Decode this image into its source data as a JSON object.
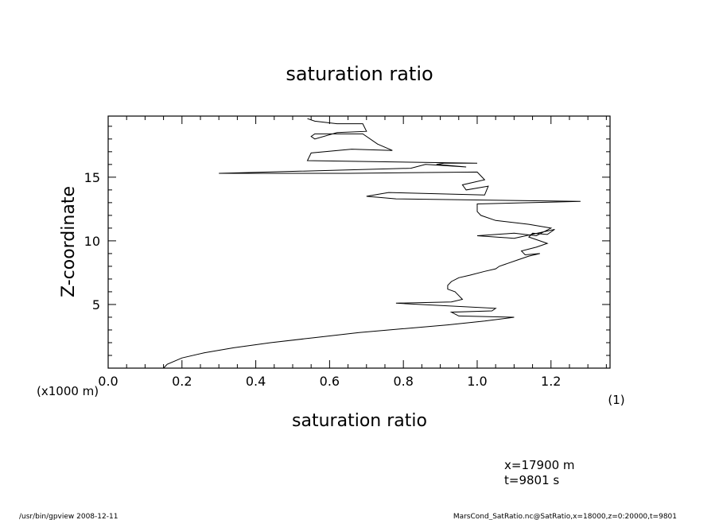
{
  "chart_data": {
    "type": "line",
    "title": "saturation ratio",
    "xlabel": "saturation ratio",
    "ylabel": "Z-coordinate",
    "x_unit": "(1)",
    "y_unit": "(x1000 m)",
    "xlim": [
      0.0,
      1.36
    ],
    "ylim": [
      0,
      19.8
    ],
    "xticks": [
      "0.0",
      "0.2",
      "0.4",
      "0.6",
      "0.8",
      "1.0",
      "1.2"
    ],
    "yticks": [
      "5",
      "10",
      "15"
    ],
    "grid": false,
    "series": [
      {
        "x": [
          0.15,
          0.16,
          0.2,
          0.26,
          0.34,
          0.44,
          0.56,
          0.68,
          0.8,
          0.92,
          1.02,
          1.1,
          0.95,
          0.93,
          1.04,
          1.05,
          0.78,
          0.93,
          0.96,
          0.95,
          0.94,
          0.92,
          0.92,
          0.93,
          0.95,
          0.98,
          1.02,
          1.05,
          1.06,
          1.08,
          1.11,
          1.14,
          1.17,
          1.13,
          1.12,
          1.16,
          1.19,
          1.17,
          1.14,
          1.15,
          1.19,
          1.21,
          1.1,
          1.0,
          1.1,
          1.16,
          1.2,
          1.14,
          1.05,
          1.01,
          1.0,
          1.0,
          1.28,
          0.78,
          0.7,
          0.76,
          1.02,
          1.03,
          0.97,
          0.96,
          1.02,
          1.0,
          0.65,
          0.3,
          0.82,
          0.86,
          0.97,
          0.89,
          0.91,
          1.0,
          0.54,
          0.55,
          0.66,
          0.77,
          0.73,
          0.69,
          0.56,
          0.55,
          0.56,
          0.62,
          0.7,
          0.69,
          0.62,
          0.56,
          0.54
        ],
        "y": [
          0.0,
          0.3,
          0.8,
          1.2,
          1.6,
          2.0,
          2.4,
          2.8,
          3.1,
          3.4,
          3.7,
          4.0,
          4.1,
          4.4,
          4.5,
          4.7,
          5.1,
          5.2,
          5.4,
          5.7,
          6.0,
          6.2,
          6.5,
          6.8,
          7.1,
          7.3,
          7.6,
          7.8,
          8.0,
          8.2,
          8.5,
          8.8,
          9.0,
          8.9,
          9.2,
          9.5,
          9.8,
          10.0,
          10.3,
          10.6,
          10.5,
          10.9,
          10.2,
          10.4,
          10.6,
          10.4,
          11.0,
          11.3,
          11.6,
          12.0,
          12.3,
          12.9,
          13.1,
          13.3,
          13.5,
          13.8,
          13.6,
          14.3,
          14.0,
          14.4,
          14.8,
          15.4,
          15.3,
          15.3,
          15.7,
          16.0,
          15.8,
          16.0,
          16.1,
          16.1,
          16.3,
          16.9,
          17.2,
          17.1,
          17.6,
          18.4,
          18.4,
          18.2,
          18.0,
          18.5,
          18.6,
          19.2,
          19.2,
          19.4,
          19.6
        ]
      }
    ]
  },
  "info": {
    "x_position": "x=17900  m",
    "time": "t=9801  s"
  },
  "footer": {
    "left": "/usr/bin/gpview   2008-12-11",
    "right": "MarsCond_SatRatio.nc@SatRatio,x=18000,z=0:20000,t=9801"
  }
}
